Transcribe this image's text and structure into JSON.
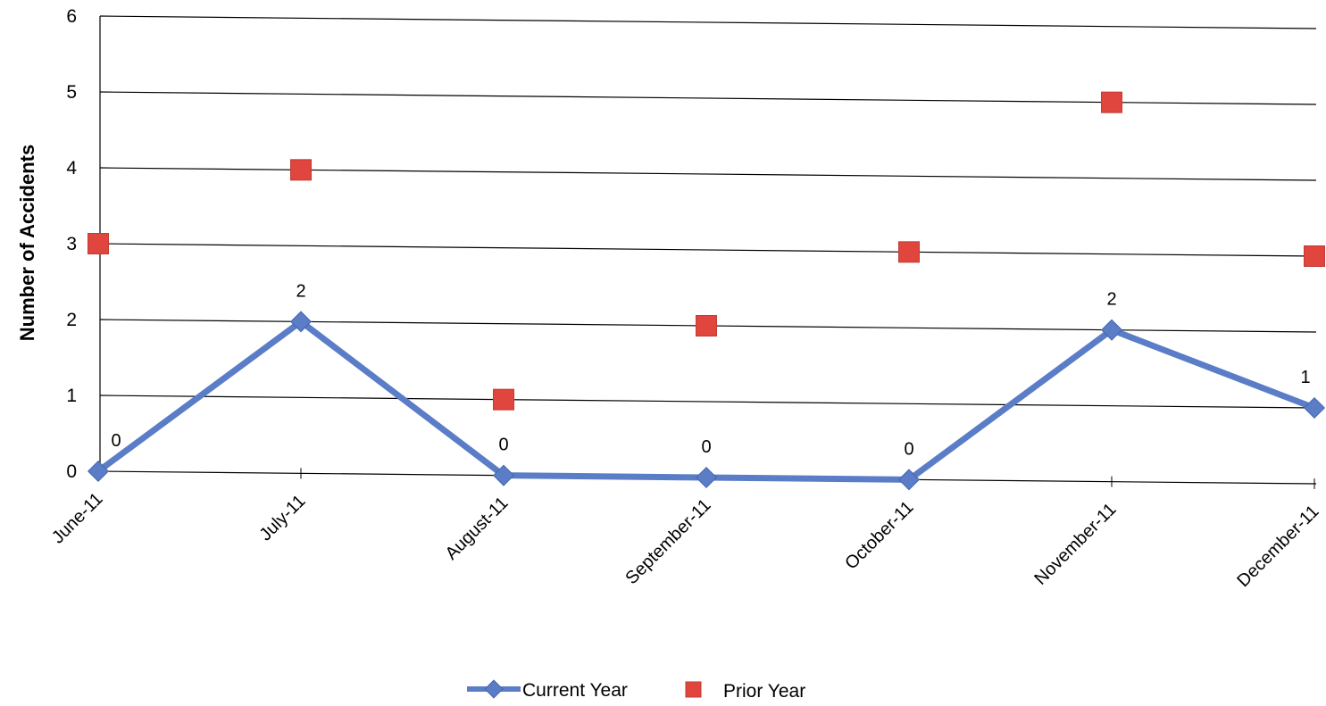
{
  "chart_data": {
    "type": "line",
    "categories": [
      "June-11",
      "July-11",
      "August-11",
      "September-11",
      "October-11",
      "November-11",
      "December-11"
    ],
    "series": [
      {
        "name": "Current Year",
        "style": "line-with-diamond-markers",
        "color": "#5B7DC8",
        "values": [
          0,
          2,
          0,
          0,
          0,
          2,
          1
        ],
        "data_labels": [
          "0",
          "2",
          "0",
          "0",
          "0",
          "2",
          "1"
        ]
      },
      {
        "name": "Prior Year",
        "style": "square-markers-only",
        "color": "#E0453E",
        "values": [
          3,
          4,
          1,
          2,
          3,
          5,
          3
        ]
      }
    ],
    "title": "",
    "xlabel": "",
    "ylabel": "Number of Accidents",
    "ylim": [
      0,
      6
    ],
    "yticks": [
      "0",
      "1",
      "2",
      "3",
      "4",
      "5",
      "6"
    ],
    "grid": "horizontal",
    "legend": "bottom-center"
  }
}
